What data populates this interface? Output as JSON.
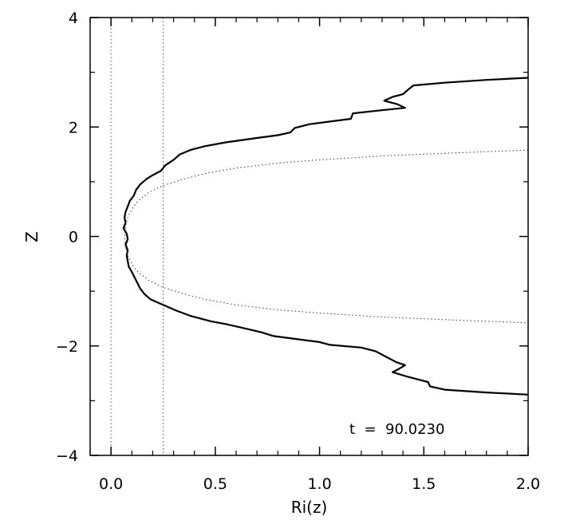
{
  "chart_data": {
    "type": "line",
    "title": "",
    "xlabel": "Ri(z)",
    "ylabel": "Z",
    "xlim": [
      -0.1,
      2.0
    ],
    "ylim": [
      -4,
      4
    ],
    "x_ticks": [
      0.0,
      0.5,
      1.0,
      1.5,
      2.0
    ],
    "x_tick_labels": [
      "0.0",
      "0.5",
      "1.0",
      "1.5",
      "2.0"
    ],
    "y_ticks": [
      -4,
      -2,
      0,
      2,
      4
    ],
    "y_tick_labels": [
      "−4",
      "−2",
      "0",
      "2",
      "4"
    ],
    "grid": false,
    "annotation": "t  =  90.0230",
    "reference_lines": [
      {
        "style": "dotted",
        "x": 0.0
      },
      {
        "style": "dotted",
        "x": 0.25
      }
    ],
    "series": [
      {
        "style": "solid",
        "points": [
          [
            2.0,
            2.9
          ],
          [
            1.8,
            2.86
          ],
          [
            1.6,
            2.81
          ],
          [
            1.45,
            2.76
          ],
          [
            1.43,
            2.7
          ],
          [
            1.4,
            2.6
          ],
          [
            1.35,
            2.55
          ],
          [
            1.31,
            2.48
          ],
          [
            1.37,
            2.42
          ],
          [
            1.41,
            2.35
          ],
          [
            1.28,
            2.3
          ],
          [
            1.16,
            2.25
          ],
          [
            1.15,
            2.15
          ],
          [
            1.05,
            2.1
          ],
          [
            0.95,
            2.05
          ],
          [
            0.88,
            1.98
          ],
          [
            0.86,
            1.9
          ],
          [
            0.8,
            1.85
          ],
          [
            0.7,
            1.8
          ],
          [
            0.55,
            1.72
          ],
          [
            0.45,
            1.65
          ],
          [
            0.38,
            1.58
          ],
          [
            0.33,
            1.5
          ],
          [
            0.3,
            1.4
          ],
          [
            0.26,
            1.3
          ],
          [
            0.24,
            1.2
          ],
          [
            0.2,
            1.12
          ],
          [
            0.17,
            1.05
          ],
          [
            0.14,
            0.95
          ],
          [
            0.12,
            0.85
          ],
          [
            0.11,
            0.75
          ],
          [
            0.09,
            0.65
          ],
          [
            0.08,
            0.55
          ],
          [
            0.07,
            0.45
          ],
          [
            0.065,
            0.35
          ],
          [
            0.07,
            0.25
          ],
          [
            0.06,
            0.15
          ],
          [
            0.075,
            0.05
          ],
          [
            0.08,
            -0.05
          ],
          [
            0.07,
            -0.15
          ],
          [
            0.08,
            -0.25
          ],
          [
            0.075,
            -0.35
          ],
          [
            0.08,
            -0.45
          ],
          [
            0.085,
            -0.55
          ],
          [
            0.1,
            -0.65
          ],
          [
            0.12,
            -0.8
          ],
          [
            0.14,
            -0.95
          ],
          [
            0.16,
            -1.05
          ],
          [
            0.19,
            -1.15
          ],
          [
            0.25,
            -1.25
          ],
          [
            0.31,
            -1.35
          ],
          [
            0.38,
            -1.45
          ],
          [
            0.48,
            -1.55
          ],
          [
            0.55,
            -1.6
          ],
          [
            0.62,
            -1.66
          ],
          [
            0.72,
            -1.75
          ],
          [
            0.78,
            -1.82
          ],
          [
            0.9,
            -1.88
          ],
          [
            1.0,
            -1.93
          ],
          [
            1.05,
            -1.98
          ],
          [
            1.2,
            -2.03
          ],
          [
            1.27,
            -2.1
          ],
          [
            1.32,
            -2.2
          ],
          [
            1.37,
            -2.3
          ],
          [
            1.41,
            -2.35
          ],
          [
            1.38,
            -2.42
          ],
          [
            1.35,
            -2.48
          ],
          [
            1.42,
            -2.56
          ],
          [
            1.48,
            -2.62
          ],
          [
            1.52,
            -2.66
          ],
          [
            1.53,
            -2.74
          ],
          [
            1.6,
            -2.8
          ],
          [
            1.8,
            -2.85
          ],
          [
            2.0,
            -2.89
          ]
        ]
      },
      {
        "style": "dotted",
        "points": [
          [
            2.0,
            1.58
          ],
          [
            1.6,
            1.52
          ],
          [
            1.3,
            1.47
          ],
          [
            1.0,
            1.4
          ],
          [
            0.8,
            1.34
          ],
          [
            0.6,
            1.25
          ],
          [
            0.45,
            1.15
          ],
          [
            0.35,
            1.05
          ],
          [
            0.25,
            0.93
          ],
          [
            0.18,
            0.8
          ],
          [
            0.13,
            0.65
          ],
          [
            0.1,
            0.5
          ],
          [
            0.08,
            0.35
          ],
          [
            0.07,
            0.2
          ],
          [
            0.065,
            0.0
          ],
          [
            0.07,
            -0.2
          ],
          [
            0.08,
            -0.35
          ],
          [
            0.1,
            -0.5
          ],
          [
            0.13,
            -0.65
          ],
          [
            0.18,
            -0.8
          ],
          [
            0.25,
            -0.93
          ],
          [
            0.35,
            -1.05
          ],
          [
            0.45,
            -1.15
          ],
          [
            0.6,
            -1.25
          ],
          [
            0.8,
            -1.34
          ],
          [
            1.0,
            -1.4
          ],
          [
            1.3,
            -1.47
          ],
          [
            1.6,
            -1.52
          ],
          [
            2.0,
            -1.58
          ]
        ]
      }
    ]
  }
}
